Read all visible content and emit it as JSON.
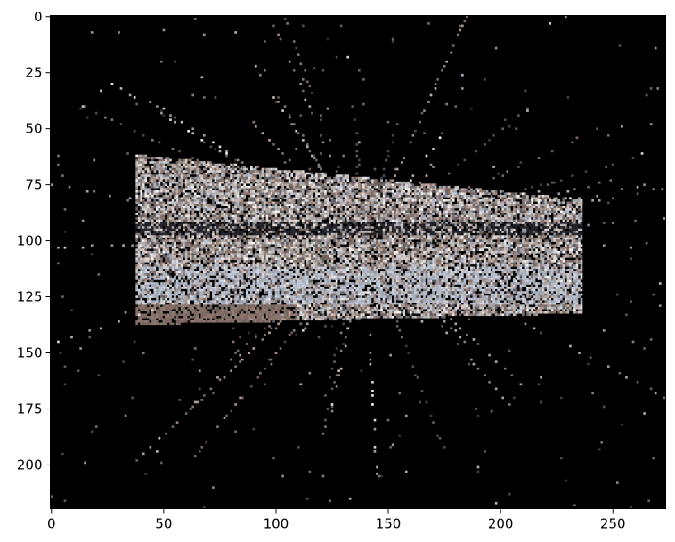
{
  "chart_data": {
    "type": "heatmap",
    "description_kind": "image",
    "image_size": {
      "width": 274,
      "height": 220
    },
    "xlim": [
      0,
      273
    ],
    "ylim": [
      220,
      0
    ],
    "x_ticks": [
      0,
      50,
      100,
      150,
      200,
      250
    ],
    "y_ticks": [
      0,
      25,
      50,
      75,
      100,
      125,
      150,
      175,
      200
    ],
    "x_tick_labels": [
      "0",
      "50",
      "100",
      "150",
      "200",
      "250"
    ],
    "y_tick_labels": [
      "0",
      "25",
      "50",
      "75",
      "100",
      "125",
      "150",
      "175",
      "200"
    ],
    "title": "",
    "xlabel": "",
    "ylabel": "",
    "background_color": "#000000",
    "point_colors": [
      "#e8dcd6",
      "#b8b8bc",
      "#8c7c74",
      "#d0d8e8",
      "#9a8078",
      "#ffffff",
      "#6f6f76",
      "#c9b3a8"
    ],
    "subject": {
      "body": {
        "x": [
          38,
          236
        ],
        "y": [
          62,
          137
        ]
      },
      "dark_stripe_y": [
        92,
        97
      ],
      "bright_underside_y": [
        112,
        128
      ]
    }
  }
}
